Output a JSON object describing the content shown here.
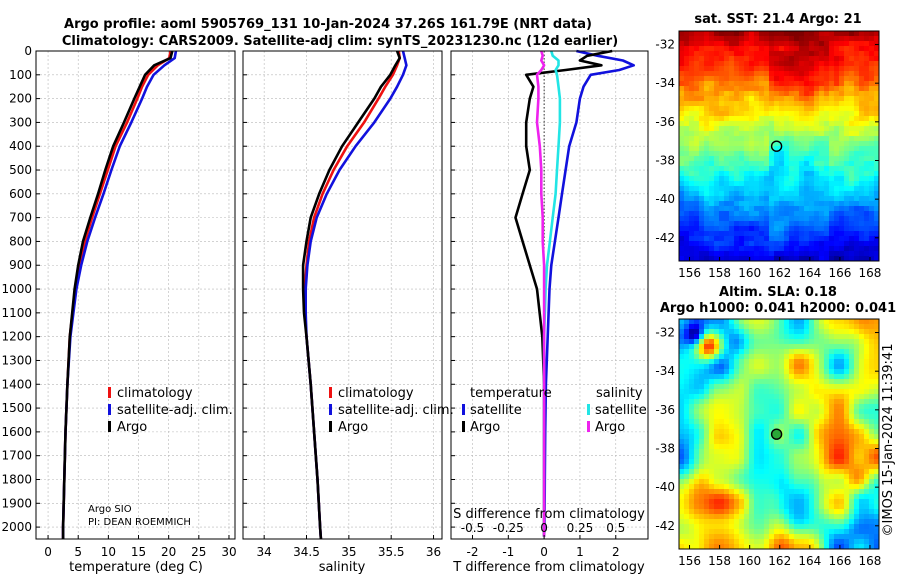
{
  "header": {
    "line1": "Argo profile: aoml 5905769_131 10-Jan-2024 37.26S 161.79E (NRT data)",
    "line2": "Climatology: CARS2009. Satellite-adj clim: synTS_20231230.nc (12d earlier)"
  },
  "colors": {
    "argo": "#000000",
    "clim": "#ee1111",
    "sat": "#1111dd",
    "sat_s": "#22e5e5",
    "argo_s": "#ee22ee"
  },
  "credits": {
    "line1": "Argo SIO",
    "line2": "PI: DEAN ROEMMICH"
  },
  "legend_profile": {
    "clim": "climatology",
    "sat": "satellite-adj. clim.",
    "argo": "Argo"
  },
  "legend_diff": {
    "temp_head": "temperature",
    "sal_head": "salinity",
    "sat": "satellite",
    "argo": "Argo"
  },
  "timestamp": "©IMOS 15-Jan-2024 11:39:41",
  "chart_data": [
    {
      "type": "line",
      "id": "temperature",
      "xlabel": "temperature (deg C)",
      "xlim": [
        -2,
        31
      ],
      "xticks": [
        0,
        5,
        10,
        15,
        20,
        25,
        30
      ],
      "ylim": [
        0,
        2050
      ],
      "yticks": [
        0,
        100,
        200,
        300,
        400,
        500,
        600,
        700,
        800,
        900,
        1000,
        1100,
        1200,
        1300,
        1400,
        1500,
        1600,
        1700,
        1800,
        1900,
        2000
      ],
      "depth": [
        0,
        30,
        60,
        100,
        150,
        200,
        300,
        400,
        500,
        600,
        700,
        800,
        900,
        1000,
        1200,
        1400,
        1600,
        1800,
        2000,
        2050
      ],
      "series": [
        {
          "name": "climatology",
          "values": [
            20.3,
            20.1,
            18.2,
            16.6,
            15.6,
            14.8,
            13.1,
            11.2,
            9.9,
            8.6,
            7.3,
            6.1,
            5.2,
            4.5,
            3.6,
            3.2,
            2.9,
            2.7,
            2.5,
            2.5
          ]
        },
        {
          "name": "satellite-adj. clim.",
          "values": [
            21.2,
            21.0,
            19.3,
            17.5,
            16.4,
            15.6,
            13.8,
            11.9,
            10.5,
            9.2,
            7.8,
            6.5,
            5.5,
            4.7,
            3.7,
            3.2,
            2.9,
            2.7,
            2.5,
            2.5
          ]
        },
        {
          "name": "Argo",
          "values": [
            20.6,
            20.3,
            17.6,
            16.1,
            15.2,
            14.3,
            12.6,
            10.8,
            9.5,
            8.3,
            7.0,
            5.8,
            5.0,
            4.4,
            3.6,
            3.2,
            2.9,
            2.7,
            2.5,
            2.5
          ]
        }
      ]
    },
    {
      "type": "line",
      "id": "salinity",
      "xlabel": "salinity",
      "xlim": [
        33.75,
        36.1
      ],
      "xticks": [
        34,
        34.5,
        35,
        35.5,
        36
      ],
      "xtick_labels": [
        "34",
        "34.5",
        "35",
        "35.5",
        "36"
      ],
      "ylim": [
        0,
        2050
      ],
      "depth": [
        0,
        30,
        60,
        100,
        150,
        200,
        300,
        400,
        500,
        600,
        700,
        800,
        900,
        1000,
        1100,
        1200,
        1400,
        1600,
        1800,
        2000,
        2050
      ],
      "series": [
        {
          "name": "climatology",
          "values": [
            35.59,
            35.6,
            35.57,
            35.52,
            35.43,
            35.35,
            35.18,
            34.98,
            34.82,
            34.69,
            34.59,
            34.53,
            34.5,
            34.48,
            34.48,
            34.5,
            34.55,
            34.59,
            34.63,
            34.66,
            34.67
          ]
        },
        {
          "name": "satellite-adj. clim.",
          "values": [
            35.64,
            35.66,
            35.68,
            35.64,
            35.57,
            35.49,
            35.3,
            35.08,
            34.89,
            34.74,
            34.62,
            34.55,
            34.51,
            34.49,
            34.49,
            34.5,
            34.55,
            34.59,
            34.63,
            34.66,
            34.67
          ]
        },
        {
          "name": "Argo",
          "values": [
            35.57,
            35.6,
            35.55,
            35.49,
            35.38,
            35.3,
            35.11,
            34.92,
            34.77,
            34.65,
            34.55,
            34.5,
            34.46,
            34.46,
            34.47,
            34.5,
            34.55,
            34.59,
            34.63,
            34.66,
            34.67
          ]
        }
      ]
    },
    {
      "type": "line",
      "id": "difference",
      "xlabel": "T difference from climatology",
      "xlabel2": "S difference from climatology",
      "xlim": [
        -2.6,
        2.9
      ],
      "xticks": [
        -2,
        -1,
        0,
        1,
        2
      ],
      "top_scale_labels": [
        "-0.5",
        "-0.25",
        "0",
        "0.25",
        "0.5"
      ],
      "top_scale_values": [
        -0.5,
        -0.25,
        0,
        0.25,
        0.5
      ],
      "s_scale": 4,
      "ylim": [
        0,
        2050
      ],
      "depth": [
        0,
        20,
        40,
        60,
        80,
        100,
        150,
        200,
        300,
        400,
        500,
        600,
        700,
        800,
        900,
        1000,
        1200,
        1400,
        1600,
        1800,
        2000,
        2040
      ],
      "series": [
        {
          "name": "temperature satellite",
          "values": [
            0.9,
            1.5,
            2.2,
            2.5,
            2.1,
            1.3,
            1.1,
            1.0,
            0.9,
            0.7,
            0.6,
            0.5,
            0.4,
            0.3,
            0.2,
            0.15,
            0.1,
            0.05,
            0.03,
            0.02,
            0.01,
            0.0
          ]
        },
        {
          "name": "temperature Argo",
          "values": [
            1.9,
            1.2,
            1.0,
            1.6,
            0.6,
            -0.5,
            -0.3,
            -0.4,
            -0.5,
            -0.5,
            -0.4,
            -0.6,
            -0.8,
            -0.6,
            -0.4,
            -0.2,
            -0.05,
            0.0,
            0.0,
            0.0,
            0.0,
            0.0
          ]
        },
        {
          "name": "salinity satellite",
          "values": [
            0.05,
            0.06,
            0.1,
            0.1,
            0.08,
            0.09,
            0.1,
            0.11,
            0.11,
            0.1,
            0.09,
            0.08,
            0.06,
            0.04,
            0.02,
            0.01,
            0.0,
            0.0,
            0.0,
            0.0,
            0.0,
            0.0
          ]
        },
        {
          "name": "salinity Argo",
          "values": [
            -0.02,
            -0.01,
            -0.02,
            0.0,
            -0.02,
            -0.05,
            -0.04,
            -0.04,
            -0.05,
            -0.03,
            -0.02,
            -0.02,
            -0.01,
            -0.01,
            0.0,
            0.0,
            0.0,
            0.0,
            0.0,
            0.0,
            0.0,
            0.0
          ]
        }
      ]
    },
    {
      "type": "heatmap",
      "id": "sst",
      "title": "sat. SST: 21.4 Argo: 21",
      "xticks": [
        156,
        158,
        160,
        162,
        164,
        166,
        168
      ],
      "yticks": [
        -32,
        -34,
        -36,
        -38,
        -40,
        -42
      ],
      "xlim": [
        155.3,
        168.6
      ],
      "ylim": [
        -43.2,
        -31.3
      ],
      "marker": {
        "lon": 161.79,
        "lat": -37.26
      }
    },
    {
      "type": "heatmap",
      "id": "sla",
      "title": "Altim. SLA: 0.18",
      "subtitle": "Argo h1000: 0.041 h2000: 0.041",
      "xticks": [
        156,
        158,
        160,
        162,
        164,
        166,
        168
      ],
      "yticks": [
        -32,
        -34,
        -36,
        -38,
        -40,
        -42
      ],
      "xlim": [
        155.3,
        168.6
      ],
      "ylim": [
        -43.2,
        -31.3
      ],
      "marker": {
        "lon": 161.79,
        "lat": -37.26
      }
    }
  ]
}
